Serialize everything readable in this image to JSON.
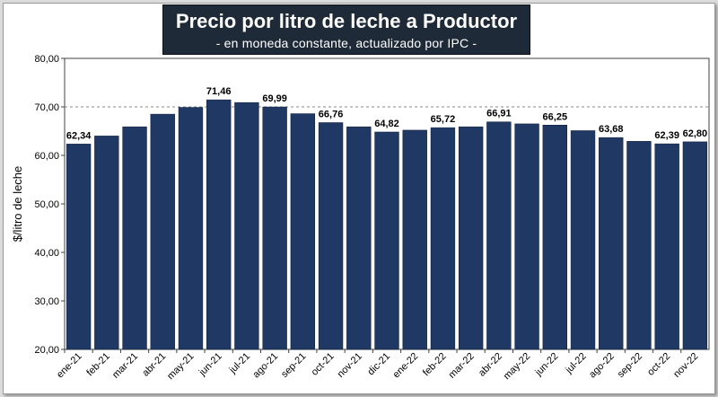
{
  "chart_data": {
    "type": "bar",
    "title": "Precio por litro de leche a Productor",
    "subtitle": "- en moneda constante, actualizado por IPC -",
    "ylabel": "$/litro de leche",
    "xlabel": "",
    "ylim": [
      20,
      80
    ],
    "yticks": [
      "20,00",
      "30,00",
      "40,00",
      "50,00",
      "60,00",
      "70,00",
      "80,00"
    ],
    "reference_line": 70,
    "categories": [
      "ene-21",
      "feb-21",
      "mar-21",
      "abr-21",
      "may-21",
      "jun-21",
      "jul-21",
      "ago-21",
      "sep-21",
      "oct-21",
      "nov-21",
      "dic-21",
      "ene-22",
      "feb-22",
      "mar-22",
      "abr-22",
      "may-22",
      "jun-22",
      "jul-22",
      "ago-22",
      "sep-22",
      "oct-22",
      "nov-22"
    ],
    "values": [
      62.34,
      64.0,
      65.9,
      68.5,
      69.9,
      71.46,
      70.9,
      69.99,
      68.6,
      66.76,
      65.9,
      64.82,
      65.2,
      65.72,
      65.9,
      66.91,
      66.5,
      66.25,
      65.1,
      63.68,
      62.9,
      62.39,
      62.8
    ],
    "data_labels": [
      "62,34",
      "",
      "",
      "",
      "",
      "71,46",
      "",
      "69,99",
      "",
      "66,76",
      "",
      "64,82",
      "",
      "65,72",
      "",
      "66,91",
      "",
      "66,25",
      "",
      "63,68",
      "",
      "62,39",
      "62,80"
    ],
    "bar_color": "#1f3864",
    "grid": false
  }
}
